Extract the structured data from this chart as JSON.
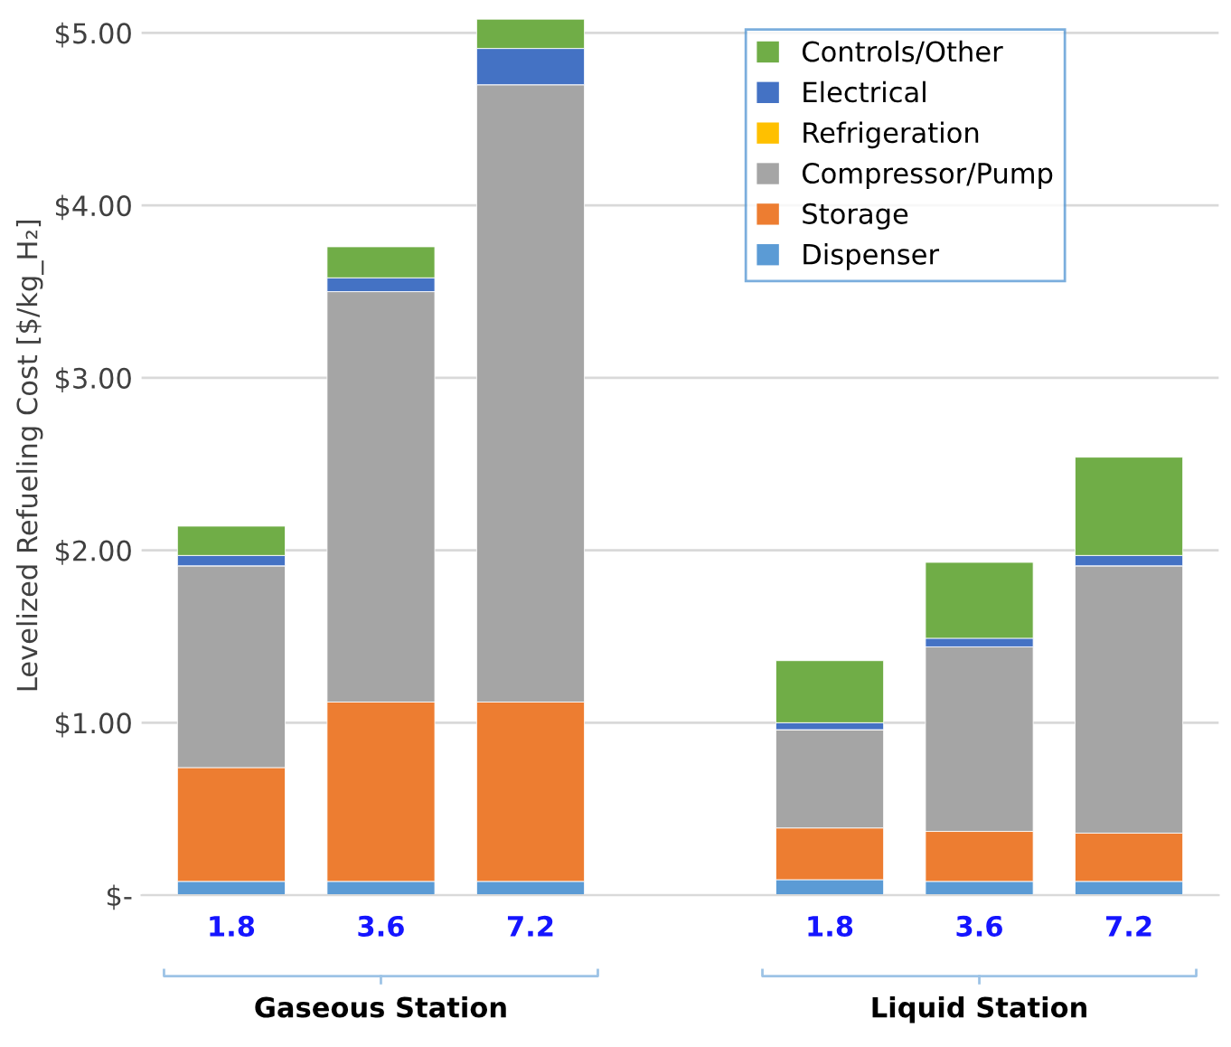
{
  "chart_data": {
    "type": "bar",
    "stacked": true,
    "ylabel": "Levelized Refueling Cost [$/kg_H₂]",
    "categories": [
      "1.8",
      "3.6",
      "7.2",
      null,
      "1.8",
      "3.6",
      "7.2"
    ],
    "series": [
      {
        "name": "Dispenser",
        "color": "#5b9bd5",
        "values": [
          0.08,
          0.08,
          0.08,
          null,
          0.09,
          0.08,
          0.08
        ]
      },
      {
        "name": "Storage",
        "color": "#ed7d31",
        "values": [
          0.66,
          1.04,
          1.04,
          null,
          0.3,
          0.29,
          0.28
        ]
      },
      {
        "name": "Compressor/Pump",
        "color": "#a5a5a5",
        "values": [
          1.17,
          2.38,
          3.58,
          null,
          0.57,
          1.07,
          1.55
        ]
      },
      {
        "name": "Refrigeration",
        "color": "#ffc000",
        "values": [
          0,
          0,
          0,
          null,
          0,
          0,
          0
        ]
      },
      {
        "name": "Electrical",
        "color": "#4472c4",
        "values": [
          0.06,
          0.08,
          0.21,
          null,
          0.04,
          0.05,
          0.06
        ]
      },
      {
        "name": "Controls/Other",
        "color": "#70ad47",
        "values": [
          0.17,
          0.18,
          0.17,
          null,
          0.36,
          0.44,
          0.57
        ]
      }
    ],
    "annotations": [
      "Gaseous Station",
      "Liquid Station"
    ],
    "ylim": [
      0,
      5.1
    ],
    "yticks": [
      {
        "value": 0,
        "label": "$-"
      },
      {
        "value": 1,
        "label": "$1.00"
      },
      {
        "value": 2,
        "label": "$2.00"
      },
      {
        "value": 3,
        "label": "$3.00"
      },
      {
        "value": 4,
        "label": "$4.00"
      },
      {
        "value": 5,
        "label": "$5.00"
      }
    ],
    "grid": "y",
    "legend": "top right"
  }
}
